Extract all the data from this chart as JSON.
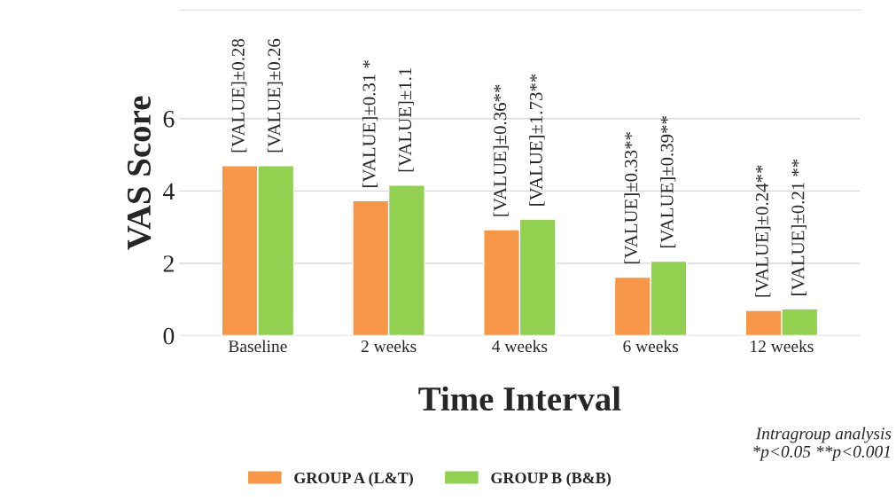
{
  "chart_data": {
    "type": "bar",
    "xlabel": "Time Interval",
    "ylabel": "VAS Score",
    "categories": [
      "Baseline",
      "2 weeks",
      "4 weeks",
      "6 weeks",
      "12 weeks"
    ],
    "series": [
      {
        "name": "GROUP A (L&T)",
        "color": "#f79646",
        "values": [
          4.7,
          3.73,
          2.93,
          1.62,
          0.7
        ]
      },
      {
        "name": "GROUP B (B&B)",
        "color": "#92d050",
        "values": [
          4.7,
          4.16,
          3.22,
          2.06,
          0.74
        ]
      }
    ],
    "ylim": [
      0,
      9
    ],
    "yticks": [
      0,
      2,
      4,
      6
    ],
    "grid": "y",
    "legend": "bottom",
    "annotations": [
      {
        "text": "[VALUE]±0.28",
        "x": "Baseline",
        "y": 4.7
      },
      {
        "text": "[VALUE]±0.26",
        "x": "Baseline",
        "y": 4.7
      },
      {
        "text": "[VALUE]±0.31 *",
        "x": "2 weeks",
        "y": 3.73
      },
      {
        "text": "[VALUE]±1.1",
        "x": "2 weeks",
        "y": 4.16
      },
      {
        "text": "[VALUE]±0.36**",
        "x": "4 weeks",
        "y": 2.93
      },
      {
        "text": "[VALUE]±1.73**",
        "x": "4 weeks",
        "y": 3.22
      },
      {
        "text": "[VALUE]±0.33**",
        "x": "6 weeks",
        "y": 1.62
      },
      {
        "text": "[VALUE]±0.39**",
        "x": "6 weeks",
        "y": 2.06
      },
      {
        "text": "[VALUE]±0.24**",
        "x": "12 weeks",
        "y": 0.7
      },
      {
        "text": "[VALUE]±0.21 **",
        "x": "12 weeks",
        "y": 0.74
      },
      "Intragroup analysis\n*p<0.05 **p<0.001"
    ]
  }
}
